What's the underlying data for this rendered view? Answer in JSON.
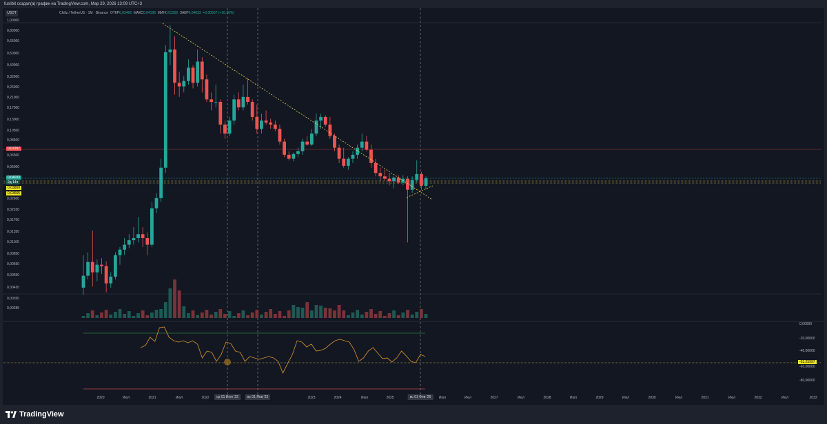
{
  "header": {
    "title": "fusilbit создал(а) график на TradingView.com, Мар 29, 2026 13:09 UTC+3"
  },
  "legend": {
    "symbol": "Chiliz / TetherUS · 1М · Binance",
    "open_label": "ОТКР",
    "open": "0,03466",
    "high_label": "МАКС",
    "high": "0,04198",
    "low_label": "МИН",
    "low": "0,03256",
    "close_label": "ЗАКР",
    "close": "0,04033",
    "change": "+0,00567 (+16,36%)"
  },
  "currency_badge": "USDT",
  "price_axis": [
    "1,00000",
    "0,80000",
    "0,65000",
    "0,50000",
    "0,40000",
    "0,32000",
    "0,26000",
    "0,21000",
    "0,17000",
    "0,13000",
    "0,10500",
    "0,08500",
    "0,06500",
    "0,05000",
    "0,02600",
    "0,02100",
    "0,01700",
    "0,01350",
    "0,01100",
    "0,00850",
    "0,00690",
    "0,00550",
    "0,00430",
    "0,00350",
    "0,00285"
  ],
  "price_labels": {
    "red_level": "0,07297",
    "current": "0,04033",
    "countdown": "2д 14ч",
    "yellow_1": "0,03800",
    "yellow_2": "0,03665"
  },
  "indicator_axis": [
    "0,00000",
    "-20,00000",
    "-40,00000",
    "-60,00000",
    "-80,00000"
  ],
  "indicator_value": "-53,25997",
  "time_axis": [
    "2020",
    "Июл",
    "2021",
    "Июл",
    "2022",
    "2023",
    "2024",
    "Июл",
    "2025",
    "Июл",
    "Июл",
    "2027",
    "Июл",
    "2028",
    "Июл",
    "2029",
    "Июл",
    "2030",
    "Июл",
    "2031",
    "Июл",
    "2032",
    "Июл",
    "2033"
  ],
  "time_highlights": [
    "ср 01 Июн '22",
    "вс 01 Янв '23",
    "вс 01 Фев '26"
  ],
  "branding": "TradingView",
  "colors": {
    "up": "#26a69a",
    "down": "#ef5350",
    "background": "#131722",
    "trendline": "#e5d64b",
    "oscillator": "#c88a2c"
  },
  "chart_data": {
    "type": "candlestick",
    "interval": "1M",
    "scale": "log",
    "candles": [
      [
        0.0044,
        0.0085,
        0.0038,
        0.0056
      ],
      [
        0.0056,
        0.009,
        0.0052,
        0.0074
      ],
      [
        0.0074,
        0.014,
        0.0045,
        0.006
      ],
      [
        0.006,
        0.0078,
        0.005,
        0.007
      ],
      [
        0.007,
        0.008,
        0.0058,
        0.0068
      ],
      [
        0.0068,
        0.0075,
        0.004,
        0.0048
      ],
      [
        0.0048,
        0.006,
        0.0044,
        0.0055
      ],
      [
        0.0055,
        0.009,
        0.0052,
        0.0085
      ],
      [
        0.0085,
        0.01,
        0.007,
        0.0095
      ],
      [
        0.0095,
        0.012,
        0.0085,
        0.0105
      ],
      [
        0.0105,
        0.013,
        0.0098,
        0.0115
      ],
      [
        0.0115,
        0.015,
        0.0105,
        0.012
      ],
      [
        0.012,
        0.0185,
        0.011,
        0.013
      ],
      [
        0.013,
        0.015,
        0.01,
        0.012
      ],
      [
        0.012,
        0.0135,
        0.0085,
        0.0105
      ],
      [
        0.0105,
        0.025,
        0.01,
        0.022
      ],
      [
        0.022,
        0.03,
        0.02,
        0.027
      ],
      [
        0.027,
        0.06,
        0.025,
        0.05
      ],
      [
        0.05,
        0.6,
        0.045,
        0.52
      ],
      [
        0.52,
        0.9,
        0.4,
        0.55
      ],
      [
        0.55,
        0.72,
        0.22,
        0.28
      ],
      [
        0.28,
        0.35,
        0.21,
        0.26
      ],
      [
        0.26,
        0.32,
        0.23,
        0.29
      ],
      [
        0.29,
        0.45,
        0.27,
        0.38
      ],
      [
        0.38,
        0.4,
        0.25,
        0.28
      ],
      [
        0.28,
        0.55,
        0.26,
        0.43
      ],
      [
        0.43,
        0.47,
        0.23,
        0.3
      ],
      [
        0.3,
        0.33,
        0.19,
        0.2
      ],
      [
        0.2,
        0.23,
        0.16,
        0.19
      ],
      [
        0.19,
        0.27,
        0.17,
        0.19
      ],
      [
        0.19,
        0.2,
        0.1,
        0.12
      ],
      [
        0.12,
        0.13,
        0.09,
        0.1
      ],
      [
        0.1,
        0.14,
        0.095,
        0.13
      ],
      [
        0.13,
        0.22,
        0.12,
        0.2
      ],
      [
        0.2,
        0.23,
        0.16,
        0.17
      ],
      [
        0.17,
        0.27,
        0.16,
        0.21
      ],
      [
        0.21,
        0.31,
        0.18,
        0.19
      ],
      [
        0.19,
        0.2,
        0.13,
        0.14
      ],
      [
        0.14,
        0.18,
        0.1,
        0.11
      ],
      [
        0.11,
        0.15,
        0.1,
        0.13
      ],
      [
        0.13,
        0.16,
        0.12,
        0.125
      ],
      [
        0.125,
        0.135,
        0.11,
        0.12
      ],
      [
        0.12,
        0.13,
        0.105,
        0.11
      ],
      [
        0.11,
        0.12,
        0.08,
        0.085
      ],
      [
        0.085,
        0.09,
        0.062,
        0.065
      ],
      [
        0.065,
        0.07,
        0.058,
        0.06
      ],
      [
        0.06,
        0.068,
        0.057,
        0.066
      ],
      [
        0.066,
        0.075,
        0.062,
        0.07
      ],
      [
        0.07,
        0.09,
        0.065,
        0.085
      ],
      [
        0.085,
        0.095,
        0.078,
        0.08
      ],
      [
        0.08,
        0.11,
        0.078,
        0.1
      ],
      [
        0.1,
        0.15,
        0.095,
        0.13
      ],
      [
        0.13,
        0.15,
        0.11,
        0.14
      ],
      [
        0.14,
        0.145,
        0.115,
        0.12
      ],
      [
        0.12,
        0.14,
        0.09,
        0.095
      ],
      [
        0.095,
        0.1,
        0.07,
        0.075
      ],
      [
        0.075,
        0.08,
        0.055,
        0.06
      ],
      [
        0.06,
        0.075,
        0.05,
        0.052
      ],
      [
        0.052,
        0.062,
        0.048,
        0.06
      ],
      [
        0.06,
        0.07,
        0.055,
        0.065
      ],
      [
        0.065,
        0.08,
        0.06,
        0.075
      ],
      [
        0.075,
        0.1,
        0.07,
        0.085
      ],
      [
        0.085,
        0.095,
        0.07,
        0.072
      ],
      [
        0.072,
        0.08,
        0.05,
        0.055
      ],
      [
        0.055,
        0.06,
        0.042,
        0.045
      ],
      [
        0.045,
        0.05,
        0.038,
        0.042
      ],
      [
        0.042,
        0.048,
        0.038,
        0.04
      ],
      [
        0.04,
        0.045,
        0.035,
        0.038
      ],
      [
        0.038,
        0.042,
        0.033,
        0.041
      ],
      [
        0.041,
        0.043,
        0.036,
        0.037
      ],
      [
        0.037,
        0.043,
        0.035,
        0.04
      ],
      [
        0.04,
        0.042,
        0.011,
        0.032
      ],
      [
        0.032,
        0.042,
        0.03,
        0.039
      ],
      [
        0.039,
        0.058,
        0.037,
        0.044
      ],
      [
        0.044,
        0.046,
        0.032,
        0.0347
      ],
      [
        0.03466,
        0.04198,
        0.03256,
        0.04033
      ]
    ]
  }
}
